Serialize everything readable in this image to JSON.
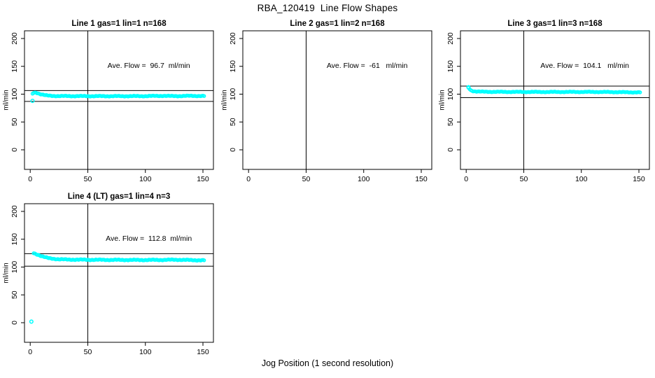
{
  "page": {
    "title": "RBA_120419  Line Flow Shapes",
    "xlabel": "Jog Position (1 second resolution)"
  },
  "colors": {
    "point": "#00FFFF",
    "axis": "#000000",
    "background": "#FFFFFF"
  },
  "axes": {
    "x_ticks": [
      0,
      50,
      100,
      150
    ],
    "y_ticks": [
      0,
      50,
      100,
      150,
      200
    ],
    "xlim": [
      -5,
      159
    ],
    "ylim": [
      -35,
      214
    ],
    "ylabel": "ml/min"
  },
  "chart_data": [
    {
      "type": "scatter",
      "title": "Line 1 gas=1 lin=1 n=168",
      "annotation": "Ave. Flow =  96.7  ml/min",
      "ave_flow_ml_min": 96.7,
      "n": 168,
      "vline_x": 50,
      "hlines": [
        106.4,
        87.0
      ],
      "outliers": [
        [
          2,
          88
        ]
      ],
      "band": {
        "x_start": 2,
        "x_end": 151,
        "jitter": 0.8,
        "keypoints": [
          [
            2,
            101
          ],
          [
            3,
            102.5
          ],
          [
            5,
            103
          ],
          [
            7,
            101.5
          ],
          [
            9,
            100
          ],
          [
            11,
            99
          ],
          [
            13,
            98
          ],
          [
            15,
            97.5
          ],
          [
            18,
            97
          ],
          [
            25,
            96.6
          ],
          [
            40,
            96.5
          ],
          [
            60,
            96.4
          ],
          [
            80,
            96.4
          ],
          [
            100,
            96.5
          ],
          [
            115,
            97.0
          ],
          [
            122,
            96.6
          ],
          [
            130,
            96.6
          ],
          [
            140,
            97.0
          ],
          [
            146,
            96.8
          ],
          [
            151,
            96.6
          ]
        ]
      }
    },
    {
      "type": "scatter",
      "title": "Line 2 gas=1 lin=2 n=168",
      "annotation": "Ave. Flow =  -61   ml/min",
      "ave_flow_ml_min": -61,
      "n": 168,
      "vline_x": 50,
      "hlines": [],
      "outliers": [],
      "band": null
    },
    {
      "type": "scatter",
      "title": "Line 3 gas=1 lin=3 n=168",
      "annotation": "Ave. Flow =  104.1   ml/min",
      "ave_flow_ml_min": 104.1,
      "n": 168,
      "vline_x": 50,
      "hlines": [
        114.5,
        93.7
      ],
      "outliers": [
        [
          2,
          112.5
        ]
      ],
      "band": {
        "x_start": 2,
        "x_end": 151,
        "jitter": 0.7,
        "keypoints": [
          [
            2,
            111.5
          ],
          [
            3,
            109
          ],
          [
            4,
            107
          ],
          [
            6,
            105.5
          ],
          [
            9,
            104.8
          ],
          [
            15,
            104.3
          ],
          [
            30,
            104.1
          ],
          [
            50,
            104.0
          ],
          [
            70,
            103.9
          ],
          [
            90,
            104.0
          ],
          [
            110,
            104.0
          ],
          [
            125,
            103.8
          ],
          [
            140,
            103.4
          ],
          [
            151,
            103.2
          ]
        ]
      }
    },
    {
      "type": "scatter",
      "title": "Line 4 (LT) gas=1 lin=4 n=3",
      "annotation": "Ave. Flow =  112.8  ml/min",
      "ave_flow_ml_min": 112.8,
      "n": 3,
      "vline_x": 50,
      "hlines": [
        124.1,
        101.5
      ],
      "outliers": [
        [
          1,
          2
        ]
      ],
      "band": {
        "x_start": 3,
        "x_end": 151,
        "jitter": 0.9,
        "keypoints": [
          [
            3,
            125
          ],
          [
            5,
            123.5
          ],
          [
            7,
            122
          ],
          [
            10,
            119.5
          ],
          [
            13,
            117.5
          ],
          [
            16,
            116
          ],
          [
            20,
            115
          ],
          [
            25,
            114
          ],
          [
            32,
            113.5
          ],
          [
            45,
            113.2
          ],
          [
            60,
            113.0
          ],
          [
            80,
            112.8
          ],
          [
            100,
            112.7
          ],
          [
            115,
            112.9
          ],
          [
            128,
            113.2
          ],
          [
            138,
            112.6
          ],
          [
            145,
            112.3
          ],
          [
            151,
            112.2
          ]
        ]
      }
    }
  ]
}
